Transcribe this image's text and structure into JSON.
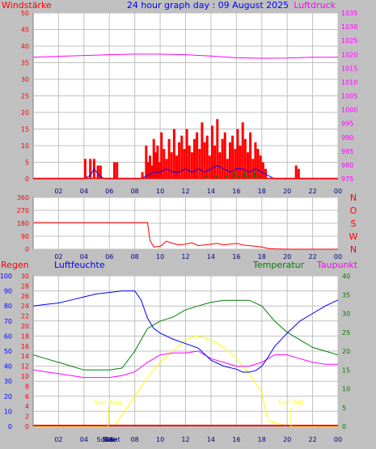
{
  "colors": {
    "background": "#c0c0c0",
    "plot_bg": "#ffffff",
    "grid": "#c0c0c0",
    "wind": "#ff0000",
    "gust": "#ff0000",
    "wind_avg": "#0000ff",
    "wind_green": "#008000",
    "pressure": "#ff00ff",
    "direction": "#ff0000",
    "humidity": "#0000ff",
    "temperature": "#008000",
    "dewpoint": "#ff00ff",
    "rain": "#ff0000",
    "solar": "#ffff00",
    "sun_marker": "#ffff00"
  },
  "header": {
    "left_label": "Windstärke",
    "title": "24 hour graph day : 09 August 2025",
    "right_label": "Luftdruck"
  },
  "chart_data": [
    {
      "type": "bar",
      "title": "24 hour graph day : 09 August 2025",
      "ylabel": "Windstärke",
      "y2label": "Luftdruck",
      "ylim": [
        0,
        50
      ],
      "y2lim": [
        975,
        1035
      ],
      "yticks": [
        "0",
        "5",
        "10",
        "15",
        "20",
        "25",
        "30",
        "35",
        "40",
        "45",
        "50"
      ],
      "y2ticks": [
        "975",
        "980",
        "985",
        "990",
        "995",
        "1000",
        "1005",
        "1010",
        "1015",
        "1020",
        "1025",
        "1030",
        "1035"
      ],
      "xticks": [
        "02",
        "04",
        "06",
        "08",
        "10",
        "12",
        "14",
        "16",
        "18",
        "20",
        "22",
        "00"
      ],
      "xlim": [
        0,
        24
      ],
      "series": [
        {
          "name": "Luftdruck",
          "axis": "right",
          "type": "line",
          "x": [
            0,
            2,
            4,
            6,
            8,
            10,
            12,
            14,
            16,
            18,
            20,
            22,
            24
          ],
          "values": [
            1019,
            1019.3,
            1019.6,
            1019.9,
            1020.1,
            1020.1,
            1019.9,
            1019.4,
            1018.8,
            1018.6,
            1018.7,
            1019,
            1019
          ]
        },
        {
          "name": "Gust",
          "axis": "left",
          "type": "bar",
          "x": [
            4.1,
            4.5,
            4.8,
            5.1,
            5.3,
            6.4,
            6.6,
            8.6,
            8.9,
            9.05,
            9.2,
            9.35,
            9.5,
            9.65,
            9.8,
            9.95,
            10.1,
            10.3,
            10.5,
            10.7,
            10.9,
            11.1,
            11.3,
            11.5,
            11.7,
            11.9,
            12.1,
            12.3,
            12.5,
            12.7,
            12.9,
            13.1,
            13.3,
            13.5,
            13.7,
            13.9,
            14.1,
            14.3,
            14.5,
            14.7,
            14.9,
            15.1,
            15.3,
            15.5,
            15.7,
            15.9,
            16.1,
            16.3,
            16.5,
            16.7,
            16.9,
            17.1,
            17.3,
            17.5,
            17.7,
            17.9,
            18.1,
            18.3,
            20.7,
            20.9
          ],
          "values": [
            6,
            6,
            6,
            4,
            4,
            5,
            5,
            2,
            10,
            5,
            7,
            4,
            12,
            8,
            10,
            5,
            14,
            9,
            6,
            12,
            8,
            15,
            7,
            11,
            13,
            9,
            15,
            10,
            8,
            12,
            14,
            9,
            17,
            11,
            13,
            7,
            16,
            10,
            18,
            8,
            12,
            14,
            6,
            11,
            13,
            9,
            15,
            10,
            17,
            12,
            8,
            14,
            6,
            11,
            9,
            7,
            5,
            3,
            4,
            3
          ]
        },
        {
          "name": "Wind",
          "axis": "left",
          "type": "line",
          "x": [
            0,
            4,
            4.5,
            4.8,
            5.2,
            5.6,
            6,
            8.5,
            9,
            9.5,
            10,
            10.5,
            11,
            11.5,
            12,
            12.5,
            13,
            13.5,
            14,
            14.5,
            15,
            15.5,
            16,
            16.5,
            17,
            17.5,
            18,
            18.5,
            19,
            24
          ],
          "values": [
            0,
            0,
            1,
            3,
            1,
            0,
            0,
            0,
            1,
            2,
            2,
            3,
            2,
            2,
            3,
            2,
            3,
            2,
            3,
            4,
            3,
            2,
            3,
            3,
            2,
            3,
            2,
            1,
            0,
            0
          ]
        },
        {
          "name": "Green",
          "axis": "left",
          "type": "bar",
          "x": [
            13.6,
            14.4,
            15.2,
            15.8,
            16.2,
            16.6,
            17.0,
            17.4,
            17.8
          ],
          "values": [
            1,
            1,
            1,
            2,
            1,
            2,
            1,
            2,
            1
          ]
        }
      ]
    },
    {
      "type": "line",
      "ylim": [
        0,
        360
      ],
      "yticks": [
        "0",
        "90",
        "180",
        "270",
        "360"
      ],
      "compass": [
        "N",
        "W",
        "S",
        "O",
        "N"
      ],
      "xticks": [
        "02",
        "04",
        "06",
        "08",
        "10",
        "12",
        "14",
        "16",
        "18",
        "20",
        "22",
        "00"
      ],
      "xlim": [
        0,
        24
      ],
      "series": [
        {
          "name": "Wind direction",
          "x": [
            0,
            9,
            9.2,
            9.5,
            10,
            10.5,
            11,
            11.5,
            12,
            12.5,
            13,
            13.5,
            14,
            14.5,
            15,
            15.5,
            16,
            16.5,
            17,
            17.5,
            18,
            18.5,
            19,
            20,
            21,
            22,
            23,
            24
          ],
          "values": [
            185,
            185,
            60,
            15,
            20,
            55,
            40,
            30,
            35,
            45,
            25,
            30,
            35,
            40,
            30,
            35,
            40,
            30,
            25,
            20,
            15,
            5,
            2,
            0,
            0,
            0,
            0,
            0
          ]
        }
      ]
    },
    {
      "type": "line",
      "ylabel": "Regen",
      "y1label": "Luftfeuchte",
      "y2label": "Temperatur",
      "y2label2": "Taupunkt",
      "ylim_rain": [
        0,
        30
      ],
      "ylim_hum": [
        0,
        100
      ],
      "ylim_temp": [
        0,
        40
      ],
      "yticks_rain": [
        "0",
        "2",
        "4",
        "6",
        "8",
        "10",
        "12",
        "14",
        "16",
        "18",
        "20",
        "22",
        "24",
        "26",
        "28",
        "30"
      ],
      "yticks_hum": [
        "0",
        "10",
        "20",
        "30",
        "40",
        "50",
        "60",
        "70",
        "80",
        "90",
        "100"
      ],
      "yticks_temp": [
        "0",
        "5",
        "10",
        "15",
        "20",
        "25",
        "30",
        "35",
        "40"
      ],
      "xticks": [
        "02",
        "04",
        "06",
        "08",
        "10",
        "12",
        "14",
        "16",
        "18",
        "20",
        "22",
        "00"
      ],
      "xlim": [
        0,
        24
      ],
      "annotations": [
        "Sun Rise",
        "Sun Set"
      ],
      "bottom_overlay": [
        "Sun",
        "Rise",
        "Sun",
        "Set"
      ],
      "series": [
        {
          "name": "Luftfeuchte",
          "axis": "hum",
          "x": [
            0,
            1,
            2,
            3,
            4,
            5,
            6,
            7,
            8,
            8.5,
            9,
            9.5,
            10,
            10.5,
            11,
            12,
            13,
            14,
            15,
            16,
            16.5,
            17,
            17.5,
            18,
            18.5,
            19,
            20,
            21,
            22,
            23,
            24
          ],
          "values": [
            80,
            81,
            82,
            84,
            86,
            88,
            89,
            90,
            90,
            84,
            72,
            65,
            62,
            60,
            58,
            55,
            52,
            44,
            40,
            38,
            36,
            36,
            37,
            40,
            46,
            53,
            62,
            70,
            75,
            80,
            84
          ]
        },
        {
          "name": "Temperatur",
          "axis": "temp",
          "x": [
            0,
            1,
            2,
            3,
            4,
            5,
            6,
            7,
            8,
            9,
            10,
            11,
            12,
            13,
            14,
            15,
            16,
            17,
            18,
            19,
            20,
            21,
            22,
            23,
            24
          ],
          "values": [
            19,
            18,
            17,
            16,
            15,
            15,
            15,
            15.5,
            20,
            26,
            28,
            29,
            31,
            32,
            33,
            33.5,
            33.5,
            33.5,
            32,
            28,
            25,
            23,
            21,
            20,
            19
          ]
        },
        {
          "name": "Taupunkt",
          "axis": "temp",
          "x": [
            0,
            1,
            2,
            3,
            4,
            5,
            6,
            7,
            8,
            9,
            10,
            11,
            12,
            13,
            14,
            15,
            16,
            17,
            18,
            19,
            20,
            21,
            22,
            23,
            24
          ],
          "values": [
            15,
            14.5,
            14,
            13.5,
            13,
            13,
            13,
            13.5,
            14.5,
            17,
            19,
            19.5,
            19.5,
            20,
            18,
            17,
            16,
            16,
            17,
            19,
            19,
            18,
            17,
            16.5,
            16.5
          ]
        },
        {
          "name": "Solar",
          "axis": "temp",
          "x": [
            0,
            5.9,
            6.5,
            7,
            8,
            9,
            10,
            11,
            12,
            12.8,
            13.5,
            14,
            15,
            16,
            17,
            18,
            18.5,
            19,
            19.5,
            20.3,
            24
          ],
          "values": [
            0,
            0,
            0.5,
            3,
            8,
            13,
            17,
            20,
            23,
            24,
            23.5,
            23,
            21,
            18,
            14,
            9,
            1.5,
            1,
            0.5,
            0,
            0
          ]
        },
        {
          "name": "Regen",
          "axis": "rain",
          "x": [
            0,
            24
          ],
          "values": [
            0,
            0
          ]
        }
      ]
    }
  ]
}
